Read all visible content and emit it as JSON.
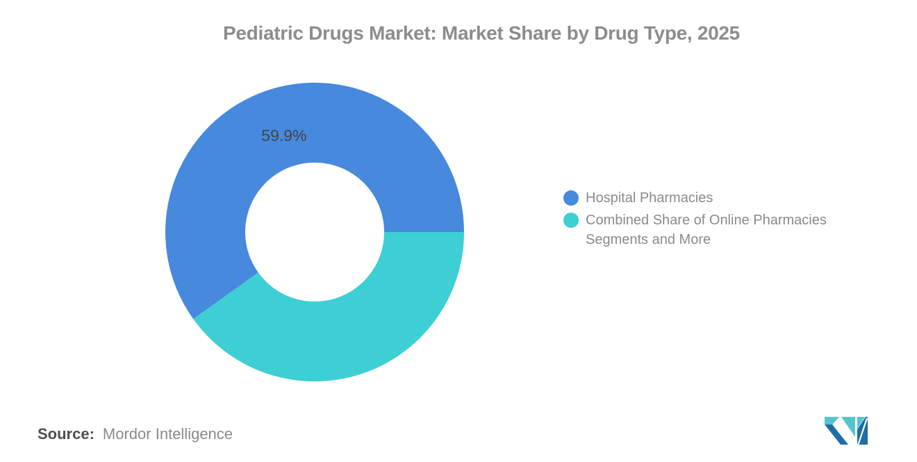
{
  "title": "Pediatric Drugs Market: Market Share by Drug Type, 2025",
  "source": {
    "label": "Source:",
    "value": "Mordor Intelligence"
  },
  "logo": {
    "name": "mordor-intelligence-logo",
    "colors": {
      "dark_blue": "#1C6EA8",
      "teal": "#54C6CB"
    }
  },
  "colors": {
    "background": "#ffffff",
    "title_text": "#8c8c8c",
    "legend_text": "#8a8a8a",
    "data_label_text": "#454545"
  },
  "legend": {
    "position": "right",
    "items": [
      {
        "label": "Hospital Pharmacies",
        "color": "#4689DD"
      },
      {
        "label": "Combined Share of Online Pharmacies Segments and More",
        "color": "#3DCFD3"
      }
    ]
  },
  "chart_data": {
    "type": "pie",
    "donut": true,
    "title": "Pediatric Drugs Market: Market Share by Drug Type, 2025",
    "units": "%",
    "start_angle_deg": 0,
    "direction": "ccw",
    "inner_radius_ratio": 0.465,
    "legend_position": "right",
    "slices": [
      {
        "label": "Hospital Pharmacies",
        "value": 59.9,
        "color": "#4689DD",
        "data_label": "59.9%"
      },
      {
        "label": "Combined Share of Online Pharmacies Segments and More",
        "value": 40.1,
        "color": "#3DCFD3",
        "data_label": ""
      }
    ]
  }
}
